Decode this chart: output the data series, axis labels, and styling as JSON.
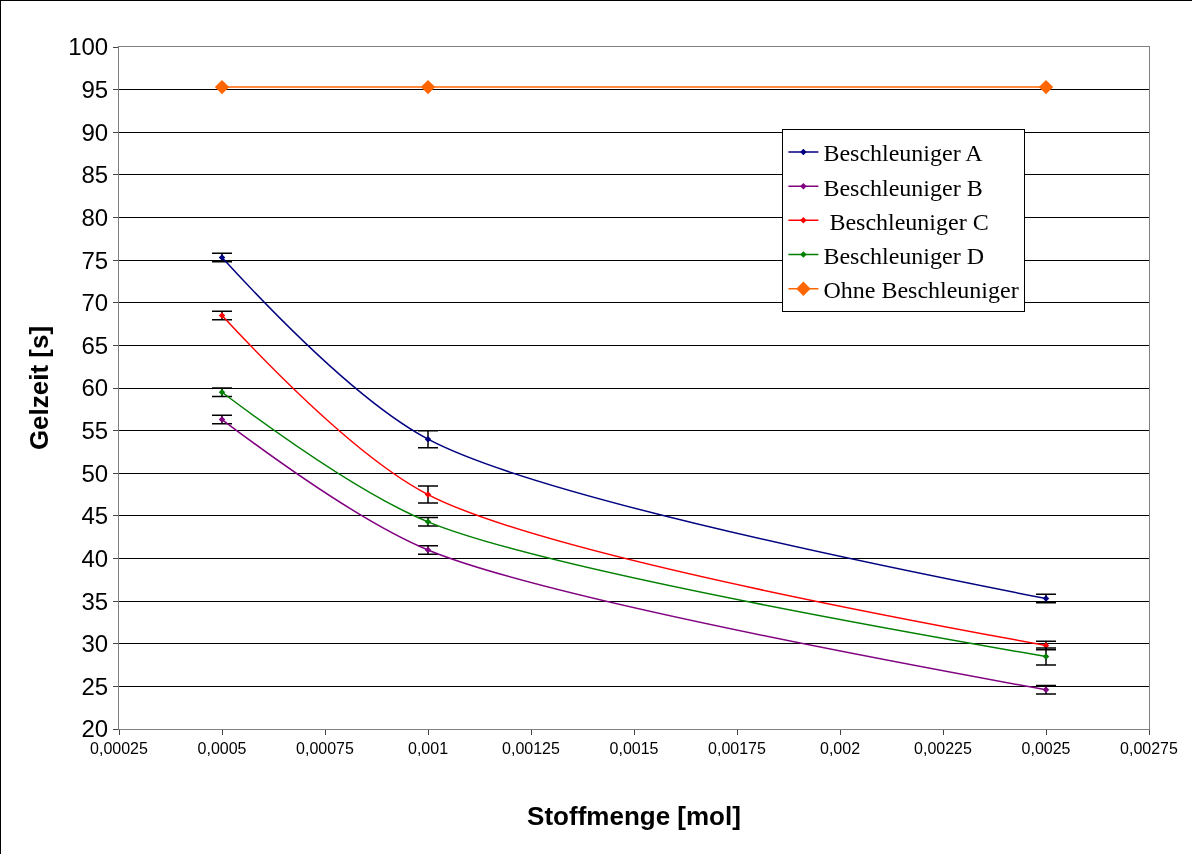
{
  "chart_data": {
    "type": "line",
    "xlabel": "Stoffmenge [mol]",
    "ylabel": "Gelzeit [s]",
    "x": [
      0.0005,
      0.001,
      0.0025
    ],
    "series": [
      {
        "name": "Beschleuniger A",
        "color": "#000080",
        "values": [
          75.3,
          54.0,
          35.3
        ],
        "errors": [
          0.5,
          1,
          0.5
        ]
      },
      {
        "name": "Beschleuniger B",
        "color": "#800080",
        "values": [
          56.3,
          41.0,
          24.6
        ],
        "errors": [
          0.5,
          0.5,
          0.5
        ]
      },
      {
        "name": " Beschleuniger C",
        "color": "#ff0000",
        "values": [
          68.5,
          47.5,
          29.8
        ],
        "errors": [
          0.5,
          1,
          0.5
        ]
      },
      {
        "name": "Beschleuniger D",
        "color": "#008000",
        "values": [
          59.5,
          44.3,
          28.5
        ],
        "errors": [
          0.5,
          0.5,
          1
        ]
      },
      {
        "name": "Ohne Beschleuniger",
        "color": "#ff6600",
        "values": [
          95.3,
          95.3,
          95.3
        ],
        "marker": "diamond"
      }
    ],
    "marker": "diamond",
    "line_style": "solid",
    "grid": "y",
    "legend": "top right",
    "xlim": [
      0.00025,
      0.00275
    ],
    "xticks": [
      {
        "value": 0.00025,
        "label": "0,00025"
      },
      {
        "value": 0.0005,
        "label": "0,0005"
      },
      {
        "value": 0.00075,
        "label": "0,00075"
      },
      {
        "value": 0.001,
        "label": "0,001"
      },
      {
        "value": 0.00125,
        "label": "0,00125"
      },
      {
        "value": 0.0015,
        "label": "0,0015"
      },
      {
        "value": 0.00175,
        "label": "0,00175"
      },
      {
        "value": 0.002,
        "label": "0,002"
      },
      {
        "value": 0.00225,
        "label": "0,00225"
      },
      {
        "value": 0.0025,
        "label": "0,0025"
      },
      {
        "value": 0.00275,
        "label": "0,00275"
      }
    ],
    "ylim": [
      20,
      100
    ],
    "yticks": [
      20,
      25,
      30,
      35,
      40,
      45,
      50,
      55,
      60,
      65,
      70,
      75,
      80,
      85,
      90,
      95,
      100
    ]
  }
}
